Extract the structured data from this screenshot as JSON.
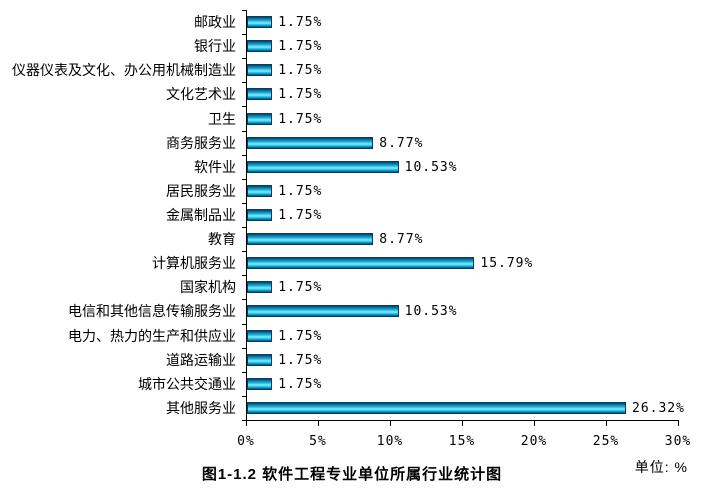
{
  "chart_data": {
    "type": "bar",
    "orientation": "horizontal",
    "title": "图1-1.2 软件工程专业单位所属行业统计图",
    "unit_label": "单位: %",
    "xlabel": "",
    "ylabel": "",
    "xlim": [
      0,
      30
    ],
    "x_tick_labels": [
      "0%",
      "5%",
      "10%",
      "15%",
      "20%",
      "25%",
      "30%"
    ],
    "grid": false,
    "legend": false,
    "background_color": "#ffffff",
    "bar_color": "#00b6e3",
    "bar_edge_color": "#0d3a5c",
    "axis_color": "#000000",
    "categories": [
      "邮政业",
      "银行业",
      "仪器仪表及文化、办公用机械制造业",
      "文化艺术业",
      "卫生",
      "商务服务业",
      "软件业",
      "居民服务业",
      "金属制品业",
      "教育",
      "计算机服务业",
      "国家机构",
      "电信和其他信息传输服务业",
      "电力、热力的生产和供应业",
      "道路运输业",
      "城市公共交通业",
      "其他服务业"
    ],
    "values": [
      1.75,
      1.75,
      1.75,
      1.75,
      1.75,
      8.77,
      10.53,
      1.75,
      1.75,
      8.77,
      15.79,
      1.75,
      10.53,
      1.75,
      1.75,
      1.75,
      26.32
    ],
    "value_labels": [
      "1.75%",
      "1.75%",
      "1.75%",
      "1.75%",
      "1.75%",
      "8.77%",
      "10.53%",
      "1.75%",
      "1.75%",
      "8.77%",
      "15.79%",
      "1.75%",
      "10.53%",
      "1.75%",
      "1.75%",
      "1.75%",
      "26.32%"
    ]
  }
}
